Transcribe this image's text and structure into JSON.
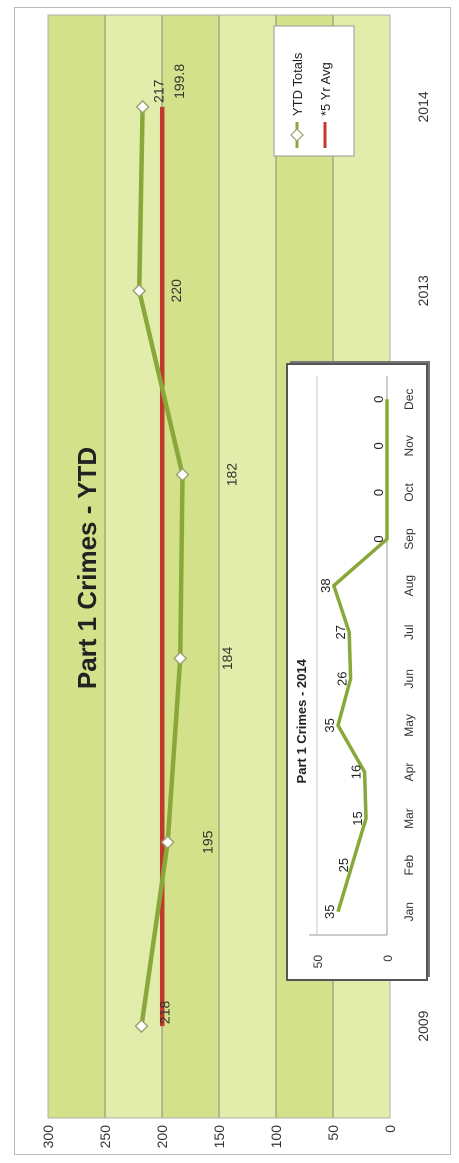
{
  "chart_data": [
    {
      "type": "line",
      "title": "Part 1 Crimes - YTD",
      "x": [
        "2009",
        "2010",
        "2011",
        "2012",
        "2013",
        "2014"
      ],
      "ylim": [
        0,
        300
      ],
      "yticks": [
        "0",
        "50",
        "100",
        "150",
        "200",
        "250",
        "300"
      ],
      "grid": true,
      "legend_position": "right",
      "series": [
        {
          "name": "YTD Totals",
          "values": [
            218,
            195,
            184,
            182,
            220,
            217
          ],
          "labels": [
            "218",
            "195",
            "184",
            "182",
            "220",
            "217"
          ],
          "color": "#8aa83a",
          "marker": "diamond"
        },
        {
          "name": "*5 Yr Avg",
          "values": [
            199.8,
            199.8,
            199.8,
            199.8,
            199.8,
            199.8
          ],
          "labels": [
            "199.8"
          ],
          "color": "#c0392b"
        }
      ]
    },
    {
      "type": "line",
      "title": "Part 1 Crimes - 2014",
      "x": [
        "Jan",
        "Feb",
        "Mar",
        "Apr",
        "May",
        "Jun",
        "Jul",
        "Aug",
        "Sep",
        "Oct",
        "Nov",
        "Dec"
      ],
      "ylim": [
        0,
        50
      ],
      "yticks": [
        "0",
        "50"
      ],
      "series": [
        {
          "values": [
            35,
            25,
            15,
            16,
            35,
            26,
            27,
            38,
            0,
            0,
            0,
            0
          ],
          "labels": [
            "35",
            "25",
            "15",
            "16",
            "35",
            "26",
            "27",
            "38",
            "0",
            "0",
            "0",
            "0"
          ],
          "color": "#8aa83a"
        }
      ]
    }
  ],
  "colors": {
    "plot_bg_band_a": "#e2ecab",
    "plot_bg_band_b": "#d2e18a",
    "inset_bg": "#ffffff",
    "inset_border": "#555555"
  }
}
